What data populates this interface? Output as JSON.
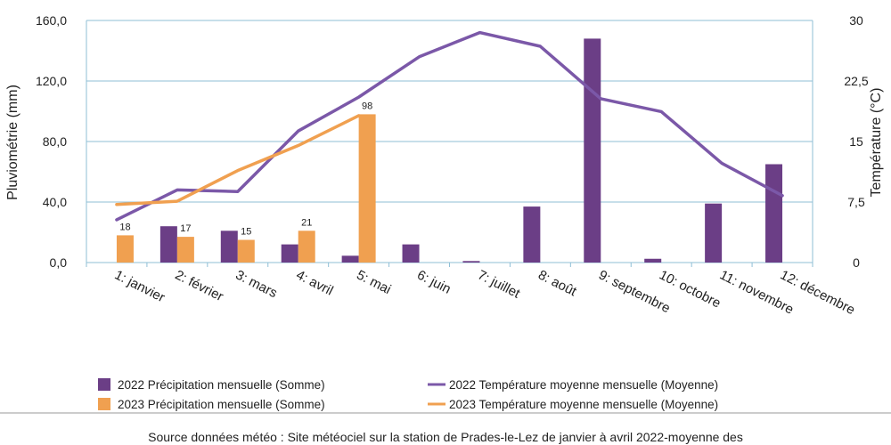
{
  "chart_data": {
    "type": "bar",
    "title": "",
    "xlabel": "",
    "ylabel": "Pluviométrie (mm)",
    "y2label": "Température (°C)",
    "ylim": [
      0,
      160
    ],
    "y2lim": [
      0,
      30
    ],
    "yticks": [
      "0,0",
      "40,0",
      "80,0",
      "120,0",
      "160,0"
    ],
    "y2ticks": [
      "0",
      "7,5",
      "15",
      "22,5",
      "30"
    ],
    "grid": true,
    "legend_position": "bottom",
    "categories": [
      "1: janvier",
      "2: février",
      "3: mars",
      "4: avril",
      "5: mai",
      "6: juin",
      "7: juillet",
      "8: août",
      "9: septembre",
      "10: octobre",
      "11: novembre",
      "12: décembre"
    ],
    "series": [
      {
        "name": "2022 Précipitation mensuelle (Somme)",
        "kind": "bar",
        "axis": "left",
        "color": "#6b3e86",
        "values": [
          0,
          24,
          21,
          12,
          4.5,
          12,
          1,
          37,
          148,
          2.5,
          39,
          65
        ]
      },
      {
        "name": "2023 Précipitation mensuelle (Somme)",
        "kind": "bar",
        "axis": "left",
        "color": "#f0a050",
        "values": [
          18,
          17,
          15,
          21,
          98,
          null,
          null,
          null,
          null,
          null,
          null,
          null
        ],
        "labels": [
          "18",
          "17",
          "15",
          "21",
          "98"
        ]
      },
      {
        "name": "2022 Température moyenne mensuelle (Moyenne)",
        "kind": "line",
        "axis": "right",
        "color": "#7b58a8",
        "values": [
          5.3,
          9.0,
          8.8,
          16.3,
          20.5,
          25.5,
          28.5,
          26.8,
          20.3,
          18.7,
          12.3,
          8.3
        ]
      },
      {
        "name": "2023 Température moyenne mensuelle (Moyenne)",
        "kind": "line",
        "axis": "right",
        "color": "#f0a050",
        "values": [
          7.2,
          7.6,
          11.4,
          14.5,
          18.2,
          null,
          null,
          null,
          null,
          null,
          null,
          null
        ]
      }
    ]
  },
  "footer": {
    "source_text": "Source données météo : Site météociel sur la station de Prades-le-Lez de janvier à avril 2022-moyenne des"
  }
}
